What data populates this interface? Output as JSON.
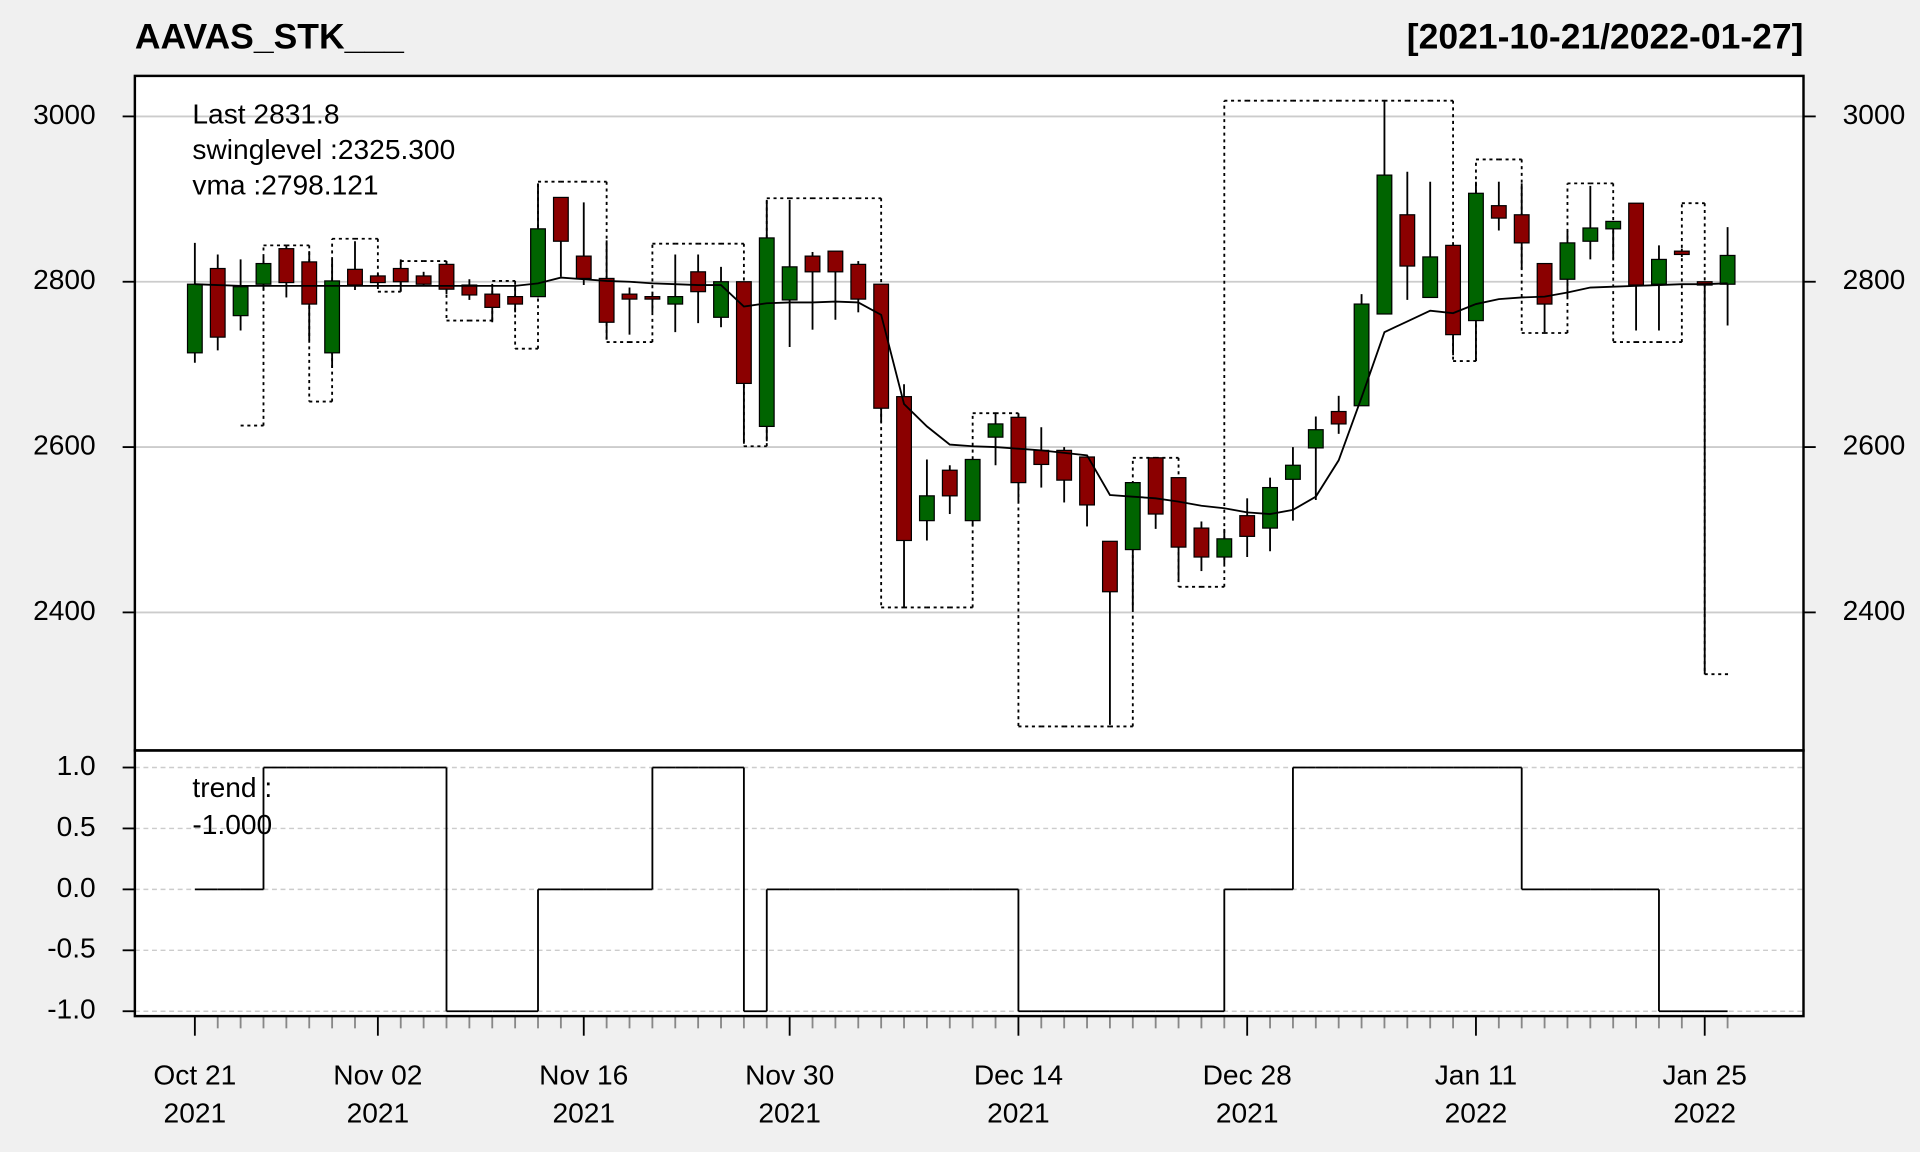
{
  "chart_data": {
    "type": "candlestick",
    "title": "AAVAS_STK___",
    "date_range": "[2021-10-21/2022-01-27]",
    "categories": [
      [
        "Oct 21",
        "2021"
      ],
      null,
      null,
      null,
      null,
      null,
      null,
      null,
      [
        "Nov 02",
        "2021"
      ],
      null,
      null,
      null,
      null,
      null,
      null,
      null,
      null,
      [
        "Nov 16",
        "2021"
      ],
      null,
      null,
      null,
      null,
      null,
      null,
      null,
      null,
      [
        "Nov 30",
        "2021"
      ],
      null,
      null,
      null,
      null,
      null,
      null,
      null,
      null,
      null,
      [
        "Dec 14",
        "2021"
      ],
      null,
      null,
      null,
      null,
      null,
      null,
      null,
      null,
      null,
      [
        "Dec 28",
        "2021"
      ],
      null,
      null,
      null,
      null,
      null,
      null,
      null,
      null,
      null,
      [
        "Jan 11",
        "2022"
      ],
      null,
      null,
      null,
      null,
      null,
      null,
      null,
      null,
      null,
      [
        "Jan 25",
        "2022"
      ],
      null
    ],
    "up_color": "#006400",
    "down_color": "#8b0000",
    "open": [
      2714,
      2816,
      2759,
      2797,
      2840,
      2824,
      2714,
      2815,
      2807,
      2816,
      2807,
      2821,
      2796,
      2785,
      2782,
      2782,
      2902,
      2831,
      2804,
      2785,
      2782,
      2773,
      2812,
      2757,
      2800,
      2625,
      2778,
      2831,
      2837,
      2821,
      2797,
      2661,
      2511,
      2572,
      2511,
      2612,
      2636,
      2596,
      2596,
      2588,
      2486,
      2476,
      2587,
      2563,
      2502,
      2467,
      2517,
      2502,
      2561,
      2599,
      2643,
      2650,
      2761,
      2881,
      2781,
      2844,
      2753,
      2892,
      2881,
      2822,
      2803,
      2849,
      2864,
      2895,
      2797,
      2837,
      2800,
      2797
    ],
    "high": [
      2847,
      2833,
      2827,
      2830,
      2844,
      2837,
      2827,
      2849,
      2810,
      2827,
      2812,
      2825,
      2803,
      2796,
      2797,
      2919,
      2902,
      2896,
      2850,
      2793,
      2788,
      2833,
      2833,
      2818,
      2800,
      2899,
      2899,
      2836,
      2837,
      2825,
      2797,
      2676,
      2585,
      2578,
      2585,
      2640,
      2640,
      2624,
      2600,
      2588,
      2486,
      2557,
      2587,
      2563,
      2510,
      2501,
      2538,
      2563,
      2600,
      2637,
      2662,
      2785,
      3019,
      2933,
      2921,
      2844,
      2921,
      2921,
      2919,
      2822,
      2862,
      2916,
      2873,
      2895,
      2844,
      2840,
      2800,
      2866
    ],
    "low": [
      2702,
      2717,
      2741,
      2790,
      2781,
      2729,
      2696,
      2790,
      2794,
      2788,
      2796,
      2785,
      2778,
      2751,
      2763,
      2781,
      2806,
      2796,
      2730,
      2736,
      2763,
      2739,
      2750,
      2745,
      2604,
      2607,
      2721,
      2742,
      2754,
      2763,
      2630,
      2407,
      2487,
      2519,
      2505,
      2578,
      2533,
      2551,
      2533,
      2504,
      2264,
      2404,
      2501,
      2437,
      2450,
      2459,
      2467,
      2474,
      2511,
      2536,
      2616,
      2650,
      2761,
      2778,
      2781,
      2711,
      2704,
      2862,
      2815,
      2739,
      2781,
      2827,
      2827,
      2741,
      2741,
      2830,
      2325,
      2747
    ],
    "close": [
      2797,
      2733,
      2794,
      2822,
      2799,
      2773,
      2801,
      2796,
      2799,
      2800,
      2797,
      2791,
      2784,
      2769,
      2773,
      2864,
      2849,
      2804,
      2751,
      2779,
      2779,
      2782,
      2788,
      2800,
      2677,
      2853,
      2818,
      2812,
      2812,
      2779,
      2647,
      2487,
      2541,
      2541,
      2585,
      2628,
      2557,
      2579,
      2560,
      2530,
      2425,
      2557,
      2519,
      2479,
      2467,
      2489,
      2492,
      2551,
      2578,
      2621,
      2628,
      2773,
      2929,
      2819,
      2830,
      2736,
      2907,
      2877,
      2847,
      2773,
      2847,
      2865,
      2873,
      2796,
      2827,
      2833,
      2796,
      2831.8
    ],
    "vma": {
      "color": "#000000",
      "values": [
        2797,
        2796,
        2795,
        2795,
        2795,
        2795,
        2795,
        2795,
        2795,
        2795,
        2795,
        2795,
        2795,
        2795,
        2795,
        2798,
        2805,
        2803,
        2801,
        2800,
        2798,
        2797,
        2796,
        2796,
        2770,
        2774,
        2775,
        2775,
        2776,
        2775,
        2760,
        2652,
        2625,
        2603,
        2601,
        2600,
        2598,
        2596,
        2593,
        2590,
        2542,
        2540,
        2538,
        2534,
        2529,
        2526,
        2521,
        2519,
        2524,
        2540,
        2584,
        2660,
        2739,
        2752,
        2765,
        2762,
        2773,
        2779,
        2781,
        2782,
        2787,
        2793,
        2794,
        2795,
        2796,
        2797,
        2797,
        2798.121
      ]
    },
    "swinglevel": {
      "color": "#000000",
      "values": [
        null,
        null,
        2626,
        2844,
        2844,
        2655,
        2852,
        2852,
        2788,
        2825,
        2825,
        2753,
        2753,
        2801,
        2719,
        2921,
        2921,
        2921,
        2727,
        2727,
        2846,
        2846,
        2846,
        2846,
        2601,
        2901,
        2901,
        2901,
        2901,
        2901,
        2406,
        2406,
        2406,
        2406,
        2641,
        2641,
        2262,
        2262,
        2262,
        2262,
        2262,
        2587,
        2587,
        2431,
        2431,
        3019,
        3019,
        3019,
        3019,
        3019,
        3019,
        3019,
        3019,
        3019,
        3019,
        2704,
        2948,
        2948,
        2738,
        2738,
        2919,
        2919,
        2727,
        2727,
        2727,
        2895,
        2325.3,
        2325.3
      ]
    },
    "trend": {
      "color": "#000000",
      "values": [
        0,
        0,
        0,
        1,
        1,
        1,
        1,
        1,
        1,
        1,
        1,
        -1,
        -1,
        -1,
        -1,
        0,
        0,
        0,
        0,
        0,
        1,
        1,
        1,
        1,
        -1,
        0,
        0,
        0,
        0,
        0,
        0,
        0,
        0,
        0,
        0,
        0,
        -1,
        -1,
        -1,
        -1,
        -1,
        -1,
        -1,
        -1,
        -1,
        0,
        0,
        0,
        1,
        1,
        1,
        1,
        1,
        1,
        1,
        1,
        1,
        1,
        0,
        0,
        0,
        0,
        0,
        0,
        -1,
        -1,
        -1,
        -1
      ]
    },
    "legend": {
      "last": "Last 2831.8",
      "last_color": "#006400",
      "swinglevel": "swinglevel :2325.300",
      "vma": "vma :2798.121",
      "trend_label": "trend :",
      "trend_value": "-1.000"
    },
    "ylim": [
      2233,
      3049
    ],
    "yticks": [
      2400,
      2600,
      2800,
      3000
    ],
    "trend_ylim": [
      -1.04,
      1.14
    ],
    "trend_yticks": [
      {
        "value": 1,
        "label": "1.0"
      },
      {
        "value": 0.5,
        "label": "0.5"
      },
      {
        "value": 0,
        "label": "0.0"
      },
      {
        "value": -0.5,
        "label": "-0.5"
      },
      {
        "value": -1,
        "label": "-1.0"
      }
    ],
    "grid": true
  }
}
